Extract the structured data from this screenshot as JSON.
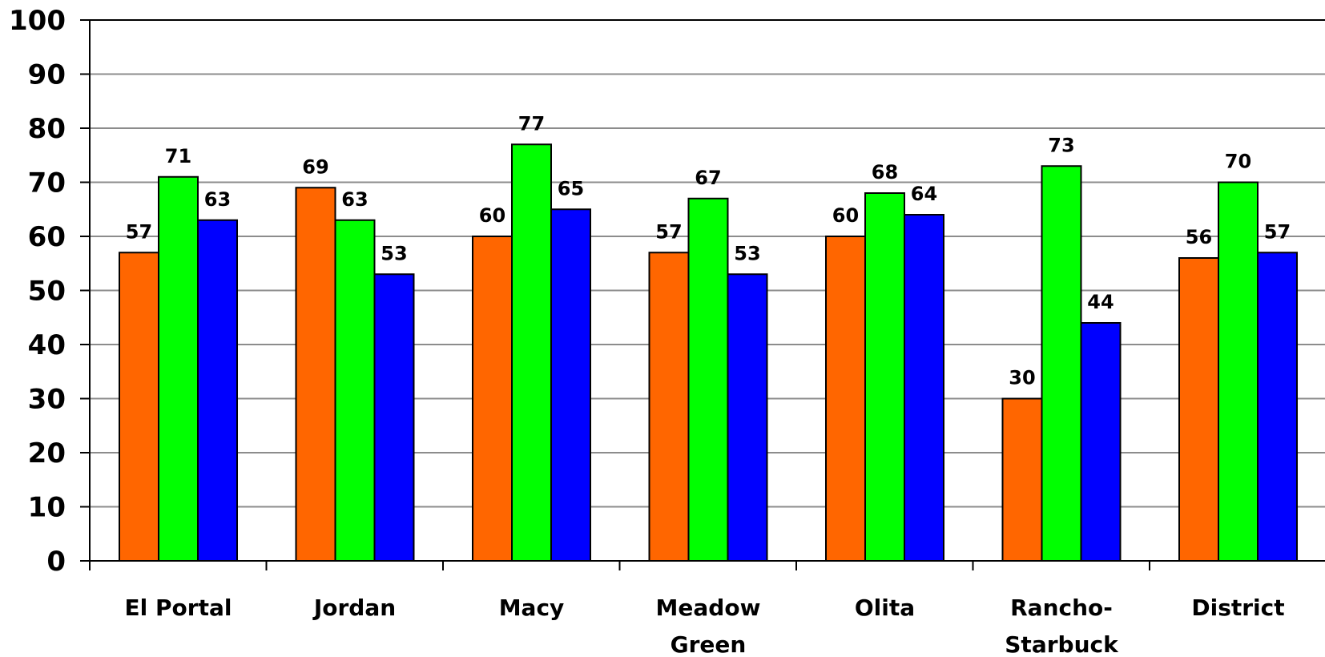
{
  "chart_data": {
    "type": "bar",
    "categories": [
      [
        "El Portal"
      ],
      [
        "Jordan"
      ],
      [
        "Macy"
      ],
      [
        "Meadow",
        "Green"
      ],
      [
        "Olita"
      ],
      [
        "Rancho-",
        "Starbuck"
      ],
      [
        "District"
      ]
    ],
    "series": [
      {
        "color": "#ff6600",
        "values": [
          57,
          69,
          60,
          57,
          60,
          30,
          56
        ]
      },
      {
        "color": "#00ff00",
        "values": [
          71,
          63,
          77,
          67,
          68,
          73,
          70
        ]
      },
      {
        "color": "#0000ff",
        "values": [
          63,
          53,
          65,
          53,
          64,
          44,
          57
        ]
      }
    ],
    "ylim": [
      0,
      100
    ],
    "yticks": [
      0,
      10,
      20,
      30,
      40,
      50,
      60,
      70,
      80,
      90,
      100
    ],
    "grid": true,
    "legend": "none",
    "title": "",
    "xlabel": "",
    "ylabel": ""
  }
}
